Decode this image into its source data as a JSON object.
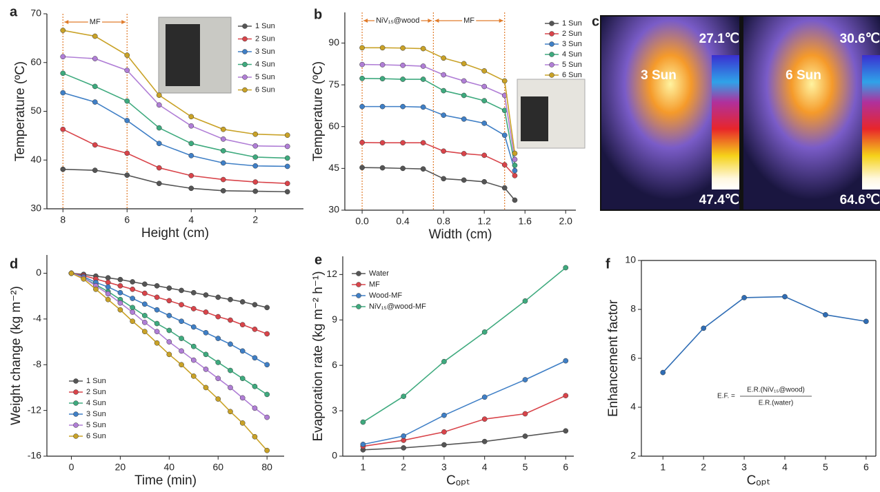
{
  "chart_data": [
    {
      "type": "line",
      "panel_label": "a",
      "xlabel": "Height (cm)",
      "ylabel": "Temperature (ºC)",
      "x": [
        8,
        7,
        6,
        5,
        4,
        3,
        2,
        1
      ],
      "xlim": [
        8.5,
        0.5
      ],
      "xticks": [
        8,
        6,
        4,
        2
      ],
      "ylim": [
        30,
        70
      ],
      "yticks": [
        30,
        40,
        50,
        60,
        70
      ],
      "vlines": [
        8,
        6
      ],
      "annotations": [
        "MF"
      ],
      "legend": "upper right",
      "series": [
        {
          "name": "1 Sun",
          "color": "#555555",
          "values": [
            38.1,
            37.9,
            36.9,
            35.2,
            34.2,
            33.7,
            33.6,
            33.5
          ]
        },
        {
          "name": "2 Sun",
          "color": "#d9444a",
          "values": [
            46.3,
            43.1,
            41.4,
            38.4,
            36.8,
            36.0,
            35.5,
            35.2
          ]
        },
        {
          "name": "3 Sun",
          "color": "#3f7fc6",
          "values": [
            53.8,
            51.9,
            48.1,
            43.4,
            40.9,
            39.4,
            38.8,
            38.7
          ]
        },
        {
          "name": "4 Sun",
          "color": "#3eaa7e",
          "values": [
            57.8,
            55.1,
            52.1,
            46.6,
            43.4,
            41.9,
            40.6,
            40.4
          ]
        },
        {
          "name": "5 Sun",
          "color": "#b07ed6",
          "values": [
            61.2,
            60.8,
            58.4,
            51.3,
            47.0,
            44.3,
            42.9,
            42.8
          ]
        },
        {
          "name": "6 Sun",
          "color": "#c9a227",
          "values": [
            66.6,
            65.4,
            61.5,
            53.3,
            48.9,
            46.3,
            45.3,
            45.1
          ]
        }
      ]
    },
    {
      "type": "line",
      "panel_label": "b",
      "xlabel": "Width (cm)",
      "ylabel": "Temperature (ºC)",
      "x": [
        0,
        0.2,
        0.4,
        0.6,
        0.8,
        1.0,
        1.2,
        1.4,
        1.5
      ],
      "xlim": [
        -0.17,
        2.1
      ],
      "xticks": [
        {
          "value": 0,
          "label": "0.0"
        },
        0.4,
        0.8,
        1.2,
        1.6,
        {
          "value": 2,
          "label": "2.0"
        }
      ],
      "ylim": [
        30,
        101
      ],
      "yticks": [
        30,
        45,
        60,
        75,
        90
      ],
      "vlines": [
        0,
        0.7,
        1.4
      ],
      "annotations": [
        "NiV₁₅@wood",
        "MF"
      ],
      "legend": "upper right",
      "series": [
        {
          "name": "1 Sun",
          "color": "#555555",
          "values": [
            45.3,
            45.2,
            45.0,
            44.8,
            41.3,
            40.8,
            40.2,
            38.0,
            33.6
          ]
        },
        {
          "name": "2 Sun",
          "color": "#d9444a",
          "values": [
            54.3,
            54.2,
            54.2,
            54.2,
            51.2,
            50.3,
            49.7,
            46.3,
            42.4
          ]
        },
        {
          "name": "3 Sun",
          "color": "#3f7fc6",
          "values": [
            67.2,
            67.2,
            67.2,
            67.0,
            64.1,
            62.7,
            61.2,
            56.9,
            44.2
          ]
        },
        {
          "name": "4 Sun",
          "color": "#3eaa7e",
          "values": [
            77.3,
            77.2,
            77.0,
            77.0,
            72.9,
            71.2,
            69.3,
            65.8,
            46.1
          ]
        },
        {
          "name": "5 Sun",
          "color": "#b07ed6",
          "values": [
            82.3,
            82.2,
            82.0,
            81.7,
            78.6,
            76.4,
            74.4,
            71.2,
            48.2
          ]
        },
        {
          "name": "6 Sun",
          "color": "#c9a227",
          "values": [
            88.3,
            88.3,
            88.2,
            88.0,
            84.6,
            82.6,
            80.0,
            76.4,
            50.4
          ]
        }
      ]
    },
    {
      "type": "line",
      "panel_label": "d",
      "xlabel": "Time (min)",
      "ylabel": "Weight change (kg m⁻²)",
      "x": [
        0,
        5,
        10,
        15,
        20,
        25,
        30,
        35,
        40,
        45,
        50,
        55,
        60,
        65,
        70,
        75,
        80
      ],
      "xlim": [
        -10,
        87
      ],
      "xticks": [
        0,
        20,
        40,
        60,
        80
      ],
      "ylim": [
        -16,
        1.6
      ],
      "yticks": [
        0,
        -4,
        -8,
        -12,
        -16
      ],
      "legend": "lower left",
      "series": [
        {
          "name": "1 Sun",
          "color": "#555555",
          "values": [
            0,
            -0.1,
            -0.25,
            -0.4,
            -0.55,
            -0.75,
            -0.95,
            -1.1,
            -1.3,
            -1.5,
            -1.7,
            -1.9,
            -2.1,
            -2.3,
            -2.5,
            -2.75,
            -3.0
          ]
        },
        {
          "name": "2 Sun",
          "color": "#d9444a",
          "values": [
            0,
            -0.2,
            -0.5,
            -0.8,
            -1.1,
            -1.4,
            -1.75,
            -2.1,
            -2.4,
            -2.75,
            -3.1,
            -3.4,
            -3.8,
            -4.1,
            -4.5,
            -4.9,
            -5.3
          ]
        },
        {
          "name": "4 Sun",
          "color": "#3eaa7e",
          "values": [
            0,
            -0.4,
            -1.0,
            -1.6,
            -2.3,
            -3.0,
            -3.7,
            -4.4,
            -5.0,
            -5.7,
            -6.4,
            -7.1,
            -7.8,
            -8.5,
            -9.2,
            -9.9,
            -10.6
          ]
        },
        {
          "name": "3 Sun",
          "color": "#3f7fc6",
          "values": [
            0,
            -0.3,
            -0.8,
            -1.2,
            -1.7,
            -2.2,
            -2.7,
            -3.2,
            -3.7,
            -4.2,
            -4.7,
            -5.2,
            -5.7,
            -6.2,
            -6.8,
            -7.4,
            -8.0
          ]
        },
        {
          "name": "5 Sun",
          "color": "#b07ed6",
          "values": [
            0,
            -0.4,
            -1.1,
            -1.8,
            -2.6,
            -3.4,
            -4.3,
            -5.1,
            -6.0,
            -6.8,
            -7.6,
            -8.4,
            -9.2,
            -10.0,
            -10.9,
            -11.8,
            -12.6
          ]
        },
        {
          "name": "6 Sun",
          "color": "#c9a227",
          "values": [
            0,
            -0.5,
            -1.4,
            -2.3,
            -3.2,
            -4.2,
            -5.1,
            -6.1,
            -7.1,
            -8.0,
            -9.0,
            -10.0,
            -11.0,
            -12.1,
            -13.1,
            -14.3,
            -15.5
          ]
        }
      ]
    },
    {
      "type": "line",
      "panel_label": "e",
      "xlabel": "Cₒₚₜ",
      "ylabel": "Evaporation rate (kg m⁻² h⁻¹)",
      "x": [
        1,
        2,
        3,
        4,
        5,
        6
      ],
      "xlim": [
        0.5,
        6.2
      ],
      "xticks": [
        1,
        2,
        3,
        4,
        5,
        6
      ],
      "ylim": [
        0,
        13.2
      ],
      "yticks": [
        0,
        3,
        6,
        9,
        12
      ],
      "legend": "upper left",
      "series": [
        {
          "name": "Water",
          "color": "#555555",
          "values": [
            0.42,
            0.55,
            0.75,
            0.97,
            1.32,
            1.67
          ]
        },
        {
          "name": "MF",
          "color": "#d9444a",
          "values": [
            0.65,
            1.05,
            1.6,
            2.45,
            2.8,
            4.0
          ]
        },
        {
          "name": "Wood-MF",
          "color": "#3f7fc6",
          "values": [
            0.78,
            1.33,
            2.7,
            3.9,
            5.05,
            6.3
          ]
        },
        {
          "name": "NiV₁₅@wood-MF",
          "color": "#3eaa7e",
          "values": [
            2.25,
            3.95,
            6.25,
            8.2,
            10.25,
            12.45
          ]
        }
      ]
    },
    {
      "type": "line",
      "panel_label": "f",
      "xlabel": "Cₒₚₜ",
      "ylabel": "Enhancement factor",
      "x": [
        1,
        2,
        3,
        4,
        5,
        6
      ],
      "xlim": [
        0.47,
        6.24
      ],
      "xticks": [
        1,
        2,
        3,
        4,
        5,
        6
      ],
      "ylim": [
        2,
        10
      ],
      "yticks": [
        2,
        4,
        6,
        8,
        10
      ],
      "box": true,
      "formula": {
        "lhs": "E.F. =",
        "numerator": "E.R.(NiV₁₅@wood)",
        "denominator": "E.R.(water)"
      },
      "series": [
        {
          "color": "#2f6db5",
          "values": [
            5.42,
            7.23,
            8.48,
            8.52,
            7.78,
            7.51
          ]
        }
      ]
    }
  ],
  "panel_c": {
    "panel_label": "c",
    "left": {
      "top": "27.1℃",
      "sun": "3 Sun",
      "bottom": "47.4℃"
    },
    "right": {
      "top": "30.6℃",
      "sun": "6 Sun",
      "bottom": "64.6℃"
    }
  }
}
